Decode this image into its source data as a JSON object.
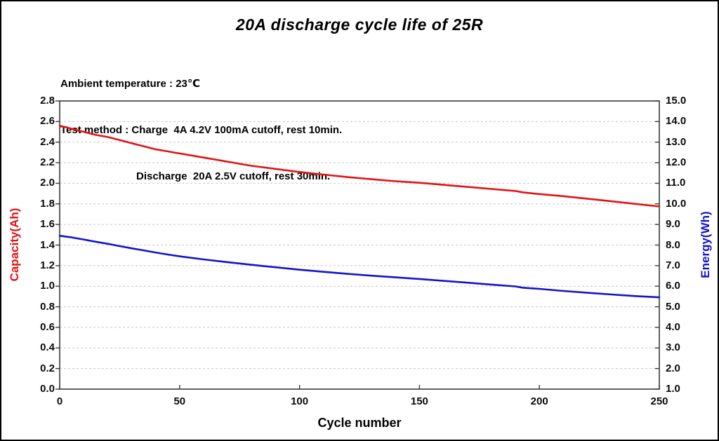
{
  "title": "20A discharge cycle life of 25R",
  "annotations": {
    "line1": "Ambient temperature : 23℃",
    "line2": "Test method : Charge  4A 4.2V 100mA cutoff, rest 10min.",
    "line3": "Discharge  20A 2.5V cutoff, rest 30min."
  },
  "colors": {
    "capacity_line": "#e01414",
    "energy_line": "#1414cc",
    "grid": "#c8c8c8",
    "spine": "#3a3a3a",
    "text": "#0a0a0a"
  },
  "chart_data": {
    "type": "line",
    "title": "20A discharge cycle life of 25R",
    "xlabel": "Cycle number",
    "ylabel_left": "Capacity(Ah)",
    "ylabel_right": "Energy(Wh)",
    "xlim": [
      0,
      250
    ],
    "ylim_left": [
      0.0,
      2.8
    ],
    "ylim_right": [
      1.0,
      15.0
    ],
    "x_ticks": [
      "0",
      "50",
      "100",
      "150",
      "200",
      "250"
    ],
    "y_ticks_left": [
      "0.0",
      "0.2",
      "0.4",
      "0.6",
      "0.8",
      "1.0",
      "1.2",
      "1.4",
      "1.6",
      "1.8",
      "2.0",
      "2.2",
      "2.4",
      "2.6",
      "2.8"
    ],
    "y_ticks_right": [
      "1.0",
      "2.0",
      "3.0",
      "4.0",
      "5.0",
      "6.0",
      "7.0",
      "8.0",
      "9.0",
      "10.0",
      "11.0",
      "12.0",
      "13.0",
      "14.0",
      "15.0"
    ],
    "grid": "horizontal-dashed",
    "legend": "none",
    "x": [
      0,
      5,
      10,
      15,
      20,
      25,
      30,
      35,
      40,
      45,
      50,
      60,
      70,
      80,
      90,
      100,
      110,
      120,
      130,
      140,
      150,
      160,
      170,
      180,
      190,
      193,
      196,
      200,
      210,
      220,
      230,
      240,
      250
    ],
    "series": [
      {
        "name": "Capacity(Ah)",
        "axis": "left",
        "color": "#e01414",
        "values": [
          2.56,
          2.53,
          2.5,
          2.47,
          2.45,
          2.42,
          2.39,
          2.36,
          2.33,
          2.31,
          2.29,
          2.25,
          2.21,
          2.17,
          2.14,
          2.11,
          2.085,
          2.06,
          2.04,
          2.02,
          2.005,
          1.985,
          1.965,
          1.945,
          1.925,
          1.912,
          1.905,
          1.895,
          1.875,
          1.85,
          1.825,
          1.8,
          1.775
        ]
      },
      {
        "name": "Energy(Wh)",
        "axis": "right",
        "color": "#1414cc",
        "values": [
          8.45,
          8.37,
          8.27,
          8.16,
          8.06,
          7.95,
          7.84,
          7.74,
          7.64,
          7.54,
          7.45,
          7.3,
          7.17,
          7.04,
          6.92,
          6.8,
          6.7,
          6.6,
          6.51,
          6.43,
          6.35,
          6.26,
          6.17,
          6.08,
          5.99,
          5.93,
          5.9,
          5.87,
          5.77,
          5.68,
          5.6,
          5.52,
          5.46
        ]
      }
    ]
  }
}
